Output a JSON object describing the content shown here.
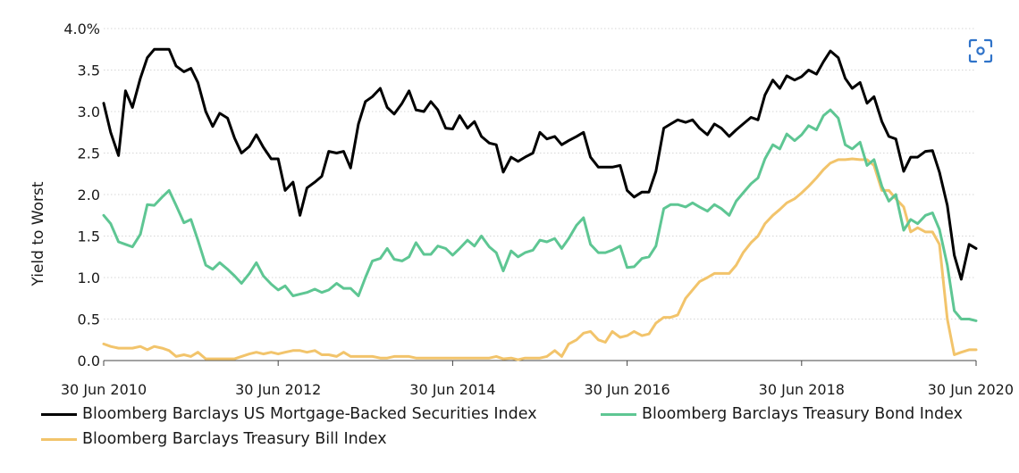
{
  "chart_data": {
    "type": "line",
    "ylabel": "Yield to Worst",
    "ylim": [
      0,
      4
    ],
    "yticks": [
      {
        "value": 0,
        "label": "0.0"
      },
      {
        "value": 0.5,
        "label": "0.5"
      },
      {
        "value": 1,
        "label": "1.0"
      },
      {
        "value": 1.5,
        "label": "1.5"
      },
      {
        "value": 2,
        "label": "2.0"
      },
      {
        "value": 2.5,
        "label": "2.5"
      },
      {
        "value": 3,
        "label": "3.0"
      },
      {
        "value": 3.5,
        "label": "3.5"
      },
      {
        "value": 4,
        "label": "4.0%"
      }
    ],
    "xlim": [
      2010.5,
      2020.5
    ],
    "xticks": [
      {
        "value": 2010.5,
        "label": "30 Jun 2010"
      },
      {
        "value": 2012.5,
        "label": "30 Jun 2012"
      },
      {
        "value": 2014.5,
        "label": "30 Jun 2014"
      },
      {
        "value": 2016.5,
        "label": "30 Jun 2016"
      },
      {
        "value": 2018.5,
        "label": "30 Jun 2018"
      },
      {
        "value": 2020.5,
        "label": "30 Jun 2020"
      }
    ],
    "series": [
      {
        "name": "Bloomberg Barclays US Mortgage-Backed Securities Index",
        "color": "#000000",
        "x": [
          2010.5,
          2010.58,
          2010.67,
          2010.75,
          2010.83,
          2010.92,
          2011.0,
          2011.08,
          2011.17,
          2011.25,
          2011.33,
          2011.42,
          2011.5,
          2011.58,
          2011.67,
          2011.75,
          2011.83,
          2011.92,
          2012.0,
          2012.08,
          2012.17,
          2012.25,
          2012.33,
          2012.42,
          2012.5,
          2012.58,
          2012.67,
          2012.75,
          2012.83,
          2012.92,
          2013.0,
          2013.08,
          2013.17,
          2013.25,
          2013.33,
          2013.42,
          2013.5,
          2013.58,
          2013.67,
          2013.75,
          2013.83,
          2013.92,
          2014.0,
          2014.08,
          2014.17,
          2014.25,
          2014.33,
          2014.42,
          2014.5,
          2014.58,
          2014.67,
          2014.75,
          2014.83,
          2014.92,
          2015.0,
          2015.08,
          2015.17,
          2015.25,
          2015.33,
          2015.42,
          2015.5,
          2015.58,
          2015.67,
          2015.75,
          2015.83,
          2015.92,
          2016.0,
          2016.08,
          2016.17,
          2016.25,
          2016.33,
          2016.42,
          2016.5,
          2016.58,
          2016.67,
          2016.75,
          2016.83,
          2016.92,
          2017.0,
          2017.08,
          2017.17,
          2017.25,
          2017.33,
          2017.42,
          2017.5,
          2017.58,
          2017.67,
          2017.75,
          2017.83,
          2017.92,
          2018.0,
          2018.08,
          2018.17,
          2018.25,
          2018.33,
          2018.42,
          2018.5,
          2018.58,
          2018.67,
          2018.75,
          2018.83,
          2018.92,
          2019.0,
          2019.08,
          2019.17,
          2019.25,
          2019.33,
          2019.42,
          2019.5,
          2019.58,
          2019.67,
          2019.75,
          2019.83,
          2019.92,
          2020.0,
          2020.08,
          2020.17,
          2020.25,
          2020.33,
          2020.42,
          2020.5
        ],
        "values": [
          3.1,
          2.75,
          2.47,
          3.25,
          3.05,
          3.4,
          3.65,
          3.75,
          3.75,
          3.75,
          3.55,
          3.48,
          3.52,
          3.35,
          3.0,
          2.82,
          2.98,
          2.92,
          2.68,
          2.5,
          2.58,
          2.72,
          2.57,
          2.43,
          2.43,
          2.05,
          2.15,
          1.75,
          2.08,
          2.15,
          2.22,
          2.52,
          2.5,
          2.52,
          2.32,
          2.85,
          3.12,
          3.18,
          3.28,
          3.05,
          2.97,
          3.1,
          3.25,
          3.02,
          3.0,
          3.12,
          3.02,
          2.8,
          2.79,
          2.95,
          2.8,
          2.88,
          2.7,
          2.62,
          2.6,
          2.27,
          2.45,
          2.4,
          2.45,
          2.5,
          2.75,
          2.67,
          2.7,
          2.6,
          2.65,
          2.7,
          2.75,
          2.45,
          2.33,
          2.33,
          2.33,
          2.35,
          2.05,
          1.97,
          2.03,
          2.03,
          2.28,
          2.8,
          2.85,
          2.9,
          2.87,
          2.9,
          2.8,
          2.72,
          2.85,
          2.8,
          2.7,
          2.78,
          2.85,
          2.93,
          2.9,
          3.2,
          3.38,
          3.28,
          3.43,
          3.38,
          3.42,
          3.5,
          3.45,
          3.6,
          3.73,
          3.65,
          3.4,
          3.28,
          3.35,
          3.1,
          3.18,
          2.88,
          2.7,
          2.67,
          2.28,
          2.45,
          2.45,
          2.52,
          2.53,
          2.27,
          1.87,
          1.27,
          0.98,
          1.4,
          1.35
        ]
      },
      {
        "name": "Bloomberg Barclays Treasury Bond Index",
        "color": "#5ec693",
        "x": [
          2010.5,
          2010.58,
          2010.67,
          2010.75,
          2010.83,
          2010.92,
          2011.0,
          2011.08,
          2011.17,
          2011.25,
          2011.33,
          2011.42,
          2011.5,
          2011.58,
          2011.67,
          2011.75,
          2011.83,
          2011.92,
          2012.0,
          2012.08,
          2012.17,
          2012.25,
          2012.33,
          2012.42,
          2012.5,
          2012.58,
          2012.67,
          2012.75,
          2012.83,
          2012.92,
          2013.0,
          2013.08,
          2013.17,
          2013.25,
          2013.33,
          2013.42,
          2013.5,
          2013.58,
          2013.67,
          2013.75,
          2013.83,
          2013.92,
          2014.0,
          2014.08,
          2014.17,
          2014.25,
          2014.33,
          2014.42,
          2014.5,
          2014.58,
          2014.67,
          2014.75,
          2014.83,
          2014.92,
          2015.0,
          2015.08,
          2015.17,
          2015.25,
          2015.33,
          2015.42,
          2015.5,
          2015.58,
          2015.67,
          2015.75,
          2015.83,
          2015.92,
          2016.0,
          2016.08,
          2016.17,
          2016.25,
          2016.33,
          2016.42,
          2016.5,
          2016.58,
          2016.67,
          2016.75,
          2016.83,
          2016.92,
          2017.0,
          2017.08,
          2017.17,
          2017.25,
          2017.33,
          2017.42,
          2017.5,
          2017.58,
          2017.67,
          2017.75,
          2017.83,
          2017.92,
          2018.0,
          2018.08,
          2018.17,
          2018.25,
          2018.33,
          2018.42,
          2018.5,
          2018.58,
          2018.67,
          2018.75,
          2018.83,
          2018.92,
          2019.0,
          2019.08,
          2019.17,
          2019.25,
          2019.33,
          2019.42,
          2019.5,
          2019.58,
          2019.67,
          2019.75,
          2019.83,
          2019.92,
          2020.0,
          2020.08,
          2020.17,
          2020.25,
          2020.33,
          2020.42,
          2020.5
        ],
        "values": [
          1.75,
          1.65,
          1.43,
          1.4,
          1.37,
          1.52,
          1.88,
          1.87,
          1.97,
          2.05,
          1.87,
          1.66,
          1.7,
          1.45,
          1.15,
          1.1,
          1.18,
          1.1,
          1.02,
          0.93,
          1.05,
          1.18,
          1.02,
          0.92,
          0.85,
          0.9,
          0.78,
          0.8,
          0.82,
          0.86,
          0.82,
          0.85,
          0.93,
          0.87,
          0.87,
          0.78,
          1.0,
          1.2,
          1.23,
          1.35,
          1.22,
          1.2,
          1.25,
          1.42,
          1.28,
          1.28,
          1.38,
          1.35,
          1.27,
          1.35,
          1.45,
          1.38,
          1.5,
          1.37,
          1.3,
          1.08,
          1.32,
          1.25,
          1.3,
          1.33,
          1.45,
          1.43,
          1.47,
          1.35,
          1.47,
          1.63,
          1.72,
          1.4,
          1.3,
          1.3,
          1.33,
          1.38,
          1.12,
          1.13,
          1.23,
          1.25,
          1.38,
          1.83,
          1.88,
          1.88,
          1.85,
          1.9,
          1.85,
          1.8,
          1.88,
          1.83,
          1.75,
          1.92,
          2.02,
          2.13,
          2.2,
          2.43,
          2.6,
          2.55,
          2.73,
          2.65,
          2.72,
          2.83,
          2.78,
          2.95,
          3.02,
          2.92,
          2.6,
          2.55,
          2.63,
          2.35,
          2.42,
          2.1,
          1.92,
          2.0,
          1.57,
          1.7,
          1.65,
          1.75,
          1.78,
          1.58,
          1.15,
          0.6,
          0.5,
          0.5,
          0.48
        ]
      },
      {
        "name": "Bloomberg Barclays Treasury Bill Index",
        "color": "#f2c46b",
        "x": [
          2010.5,
          2010.58,
          2010.67,
          2010.75,
          2010.83,
          2010.92,
          2011.0,
          2011.08,
          2011.17,
          2011.25,
          2011.33,
          2011.42,
          2011.5,
          2011.58,
          2011.67,
          2011.75,
          2011.83,
          2011.92,
          2012.0,
          2012.08,
          2012.17,
          2012.25,
          2012.33,
          2012.42,
          2012.5,
          2012.58,
          2012.67,
          2012.75,
          2012.83,
          2012.92,
          2013.0,
          2013.08,
          2013.17,
          2013.25,
          2013.33,
          2013.42,
          2013.5,
          2013.58,
          2013.67,
          2013.75,
          2013.83,
          2013.92,
          2014.0,
          2014.08,
          2014.17,
          2014.25,
          2014.33,
          2014.42,
          2014.5,
          2014.58,
          2014.67,
          2014.75,
          2014.83,
          2014.92,
          2015.0,
          2015.08,
          2015.17,
          2015.25,
          2015.33,
          2015.42,
          2015.5,
          2015.58,
          2015.67,
          2015.75,
          2015.83,
          2015.92,
          2016.0,
          2016.08,
          2016.17,
          2016.25,
          2016.33,
          2016.42,
          2016.5,
          2016.58,
          2016.67,
          2016.75,
          2016.83,
          2016.92,
          2017.0,
          2017.08,
          2017.17,
          2017.25,
          2017.33,
          2017.42,
          2017.5,
          2017.58,
          2017.67,
          2017.75,
          2017.83,
          2017.92,
          2018.0,
          2018.08,
          2018.17,
          2018.25,
          2018.33,
          2018.42,
          2018.5,
          2018.58,
          2018.67,
          2018.75,
          2018.83,
          2018.92,
          2019.0,
          2019.08,
          2019.17,
          2019.25,
          2019.33,
          2019.42,
          2019.5,
          2019.58,
          2019.67,
          2019.75,
          2019.83,
          2019.92,
          2020.0,
          2020.08,
          2020.17,
          2020.25,
          2020.33,
          2020.42,
          2020.5
        ],
        "values": [
          0.2,
          0.17,
          0.15,
          0.15,
          0.15,
          0.17,
          0.13,
          0.17,
          0.15,
          0.12,
          0.05,
          0.07,
          0.05,
          0.1,
          0.02,
          0.02,
          0.02,
          0.02,
          0.02,
          0.05,
          0.08,
          0.1,
          0.08,
          0.1,
          0.08,
          0.1,
          0.12,
          0.12,
          0.1,
          0.12,
          0.07,
          0.07,
          0.05,
          0.1,
          0.05,
          0.05,
          0.05,
          0.05,
          0.03,
          0.03,
          0.05,
          0.05,
          0.05,
          0.03,
          0.03,
          0.03,
          0.03,
          0.03,
          0.03,
          0.03,
          0.03,
          0.03,
          0.03,
          0.03,
          0.05,
          0.02,
          0.03,
          0.01,
          0.03,
          0.03,
          0.03,
          0.05,
          0.12,
          0.05,
          0.2,
          0.25,
          0.33,
          0.35,
          0.25,
          0.22,
          0.35,
          0.28,
          0.3,
          0.35,
          0.3,
          0.32,
          0.45,
          0.52,
          0.52,
          0.55,
          0.75,
          0.85,
          0.95,
          1.0,
          1.05,
          1.05,
          1.05,
          1.15,
          1.3,
          1.42,
          1.5,
          1.65,
          1.75,
          1.82,
          1.9,
          1.95,
          2.02,
          2.1,
          2.2,
          2.3,
          2.38,
          2.42,
          2.42,
          2.43,
          2.42,
          2.42,
          2.35,
          2.05,
          2.05,
          1.95,
          1.85,
          1.55,
          1.6,
          1.55,
          1.55,
          1.4,
          0.5,
          0.07,
          0.1,
          0.13,
          0.13
        ]
      }
    ]
  },
  "ui": {
    "scan_icon": "scan-icon"
  }
}
